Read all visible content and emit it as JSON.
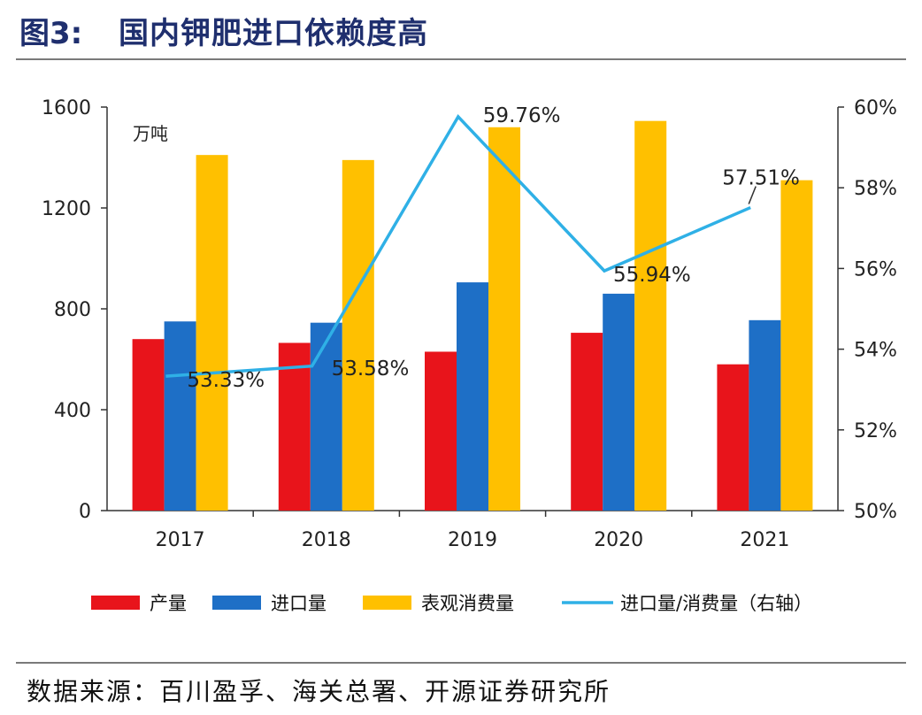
{
  "header": {
    "fig_num": "图3:",
    "title": "国内钾肥进口依赖度高"
  },
  "source": "数据来源：百川盈孚、海关总署、开源证券研究所",
  "chart_data": {
    "type": "bar",
    "title": "国内钾肥进口依赖度高",
    "ylabel": "万吨",
    "categories": [
      "2017",
      "2018",
      "2019",
      "2020",
      "2021"
    ],
    "ylim": [
      0,
      1600
    ],
    "yticks": [
      "0",
      "400",
      "800",
      "1200",
      "1600"
    ],
    "y2lim": [
      0.5,
      0.6
    ],
    "y2ticks": [
      "50%",
      "52%",
      "54%",
      "56%",
      "58%",
      "60%"
    ],
    "series": [
      {
        "name": "产量",
        "color": "#e8141b",
        "values": [
          680,
          665,
          630,
          705,
          580
        ]
      },
      {
        "name": "进口量",
        "color": "#1e6fc6",
        "values": [
          750,
          745,
          905,
          860,
          755
        ]
      },
      {
        "name": "表观消费量",
        "color": "#ffc000",
        "values": [
          1410,
          1390,
          1520,
          1545,
          1310
        ]
      }
    ],
    "line_series": {
      "name": "进口量/消费量（右轴）",
      "color": "#2fb0e6",
      "axis": "right",
      "values": [
        0.5333,
        0.5358,
        0.5976,
        0.5594,
        0.5751
      ],
      "labels": [
        "53.33%",
        "53.58%",
        "59.76%",
        "55.94%",
        "57.51%"
      ]
    },
    "legend_position": "bottom",
    "grid": false
  }
}
